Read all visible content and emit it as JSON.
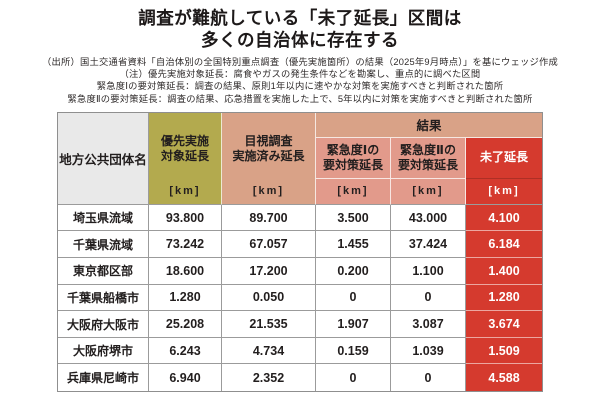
{
  "title": {
    "line1": "調査が難航している「未了延長」区間は",
    "line2": "多くの自治体に存在する"
  },
  "notes": [
    "（出所）国土交通省資料「自治体別の全国特別重点調査（優先実施箇所）の結果（2025年9月時点）」を基にウェッジ作成",
    "（注）優先実施対象延長：腐食やガスの発生条件などを勘案し、重点的に調べた区間",
    "緊急度Ⅰの要対策延長：調査の結果、原則1年以内に速やかな対策を実施すべきと判断された箇所",
    "緊急度Ⅱの要対策延長：調査の結果、応急措置を実施した上で、5年以内に対策を実施すべきと判断された箇所"
  ],
  "table": {
    "headers": {
      "org": "地方公共団体名",
      "priority": [
        "優先実施",
        "対象延長"
      ],
      "visual": [
        "目視調査",
        "実施済み延長"
      ],
      "result_group": "結果",
      "urgency1": [
        "緊急度Ⅰの",
        "要対策延長"
      ],
      "urgency2": [
        "緊急度Ⅱの",
        "要対策延長"
      ],
      "unfinished": "未了延長",
      "unit": "[km]"
    },
    "rows": [
      {
        "name": "埼玉県流域",
        "values": [
          "93.800",
          "89.700",
          "3.500",
          "43.000",
          "4.100"
        ]
      },
      {
        "name": "千葉県流域",
        "values": [
          "73.242",
          "67.057",
          "1.455",
          "37.424",
          "6.184"
        ]
      },
      {
        "name": "東京都区部",
        "values": [
          "18.600",
          "17.200",
          "0.200",
          "1.100",
          "1.400"
        ]
      },
      {
        "name": "千葉県船橋市",
        "values": [
          "1.280",
          "0.050",
          "0",
          "0",
          "1.280"
        ]
      },
      {
        "name": "大阪府大阪市",
        "values": [
          "25.208",
          "21.535",
          "1.907",
          "3.087",
          "3.674"
        ]
      },
      {
        "name": "大阪府堺市",
        "values": [
          "6.243",
          "4.734",
          "0.159",
          "1.039",
          "1.509"
        ]
      },
      {
        "name": "兵庫県尼崎市",
        "values": [
          "6.940",
          "2.352",
          "0",
          "0",
          "4.588"
        ]
      }
    ]
  },
  "colors": {
    "olive": "#b3aa4e",
    "tan": "#d9a287",
    "salmon": "#e29a8b",
    "red": "#d53a2e",
    "header_gray": "#e9e9e9",
    "grid": "#9b9b9b"
  },
  "chart_data": {
    "type": "table",
    "title": "調査が難航している「未了延長」区間は多くの自治体に存在する",
    "columns": [
      "地方公共団体名",
      "優先実施対象延長 [km]",
      "目視調査実施済み延長 [km]",
      "緊急度Ⅰの要対策延長 [km]",
      "緊急度Ⅱの要対策延長 [km]",
      "未了延長 [km]"
    ],
    "rows": [
      [
        "埼玉県流域",
        93.8,
        89.7,
        3.5,
        43.0,
        4.1
      ],
      [
        "千葉県流域",
        73.242,
        67.057,
        1.455,
        37.424,
        6.184
      ],
      [
        "東京都区部",
        18.6,
        17.2,
        0.2,
        1.1,
        1.4
      ],
      [
        "千葉県船橋市",
        1.28,
        0.05,
        0,
        0,
        1.28
      ],
      [
        "大阪府大阪市",
        25.208,
        21.535,
        1.907,
        3.087,
        3.674
      ],
      [
        "大阪府堺市",
        6.243,
        4.734,
        0.159,
        1.039,
        1.509
      ],
      [
        "兵庫県尼崎市",
        6.94,
        2.352,
        0,
        0,
        4.588
      ]
    ]
  }
}
